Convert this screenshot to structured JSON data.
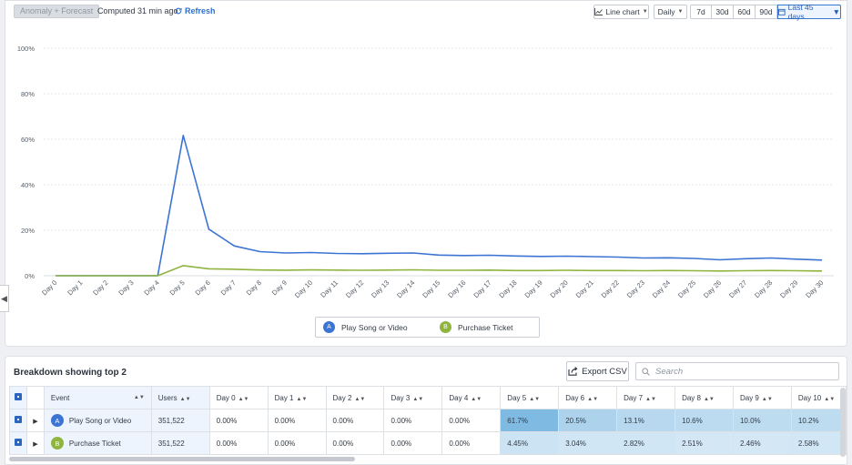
{
  "toolbar": {
    "anomaly_label": "Anomaly + Forecast",
    "computed_label": "Computed 31 min ago",
    "refresh_label": "Refresh",
    "chart_type_label": "Line chart",
    "interval_label": "Daily",
    "ranges": [
      "7d",
      "30d",
      "60d",
      "90d"
    ],
    "active_range_label": "Last 45 days"
  },
  "chart_data": {
    "type": "line",
    "x": [
      "Day 0",
      "Day 1",
      "Day 2",
      "Day 3",
      "Day 4",
      "Day 5",
      "Day 6",
      "Day 7",
      "Day 8",
      "Day 9",
      "Day 10",
      "Day 11",
      "Day 12",
      "Day 13",
      "Day 14",
      "Day 15",
      "Day 16",
      "Day 17",
      "Day 18",
      "Day 19",
      "Day 20",
      "Day 21",
      "Day 22",
      "Day 23",
      "Day 24",
      "Day 25",
      "Day 26",
      "Day 27",
      "Day 28",
      "Day 29",
      "Day 30"
    ],
    "y_ticks": [
      "0%",
      "20%",
      "40%",
      "60%",
      "80%",
      "100%"
    ],
    "ylim": [
      0,
      100
    ],
    "series": [
      {
        "name": "Play Song or Video",
        "badge": "A",
        "color": "#3c74d4",
        "values": [
          0,
          0,
          0,
          0,
          0,
          61.7,
          20.5,
          13.1,
          10.6,
          10.0,
          10.2,
          9.8,
          9.7,
          9.9,
          10.0,
          9.1,
          8.9,
          9.0,
          8.7,
          8.5,
          8.6,
          8.4,
          8.2,
          7.8,
          7.9,
          7.6,
          7.0,
          7.5,
          7.8,
          7.3,
          6.9
        ]
      },
      {
        "name": "Purchase Ticket",
        "badge": "B",
        "color": "#8fb440",
        "values": [
          0,
          0,
          0,
          0,
          0,
          4.45,
          3.04,
          2.82,
          2.51,
          2.46,
          2.58,
          2.5,
          2.4,
          2.5,
          2.6,
          2.4,
          2.4,
          2.5,
          2.3,
          2.3,
          2.4,
          2.3,
          2.3,
          2.2,
          2.3,
          2.2,
          2.1,
          2.2,
          2.3,
          2.2,
          2.1
        ]
      }
    ]
  },
  "legend": {
    "items": [
      {
        "badge": "A",
        "label": "Play Song or Video"
      },
      {
        "badge": "B",
        "label": "Purchase Ticket"
      }
    ]
  },
  "breakdown": {
    "title": "Breakdown showing top 2",
    "export_label": "Export CSV",
    "search_placeholder": "Search",
    "columns": [
      "Event",
      "Users",
      "Day 0",
      "Day 1",
      "Day 2",
      "Day 3",
      "Day 4",
      "Day 5",
      "Day 6",
      "Day 7",
      "Day 8",
      "Day 9",
      "Day 10"
    ],
    "rows": [
      {
        "badge": "A",
        "event": "Play Song or Video",
        "users": "351,522",
        "days": [
          "0.00%",
          "0.00%",
          "0.00%",
          "0.00%",
          "0.00%",
          "61.7%",
          "20.5%",
          "13.1%",
          "10.6%",
          "10.0%",
          "10.2%"
        ]
      },
      {
        "badge": "B",
        "event": "Purchase Ticket",
        "users": "351,522",
        "days": [
          "0.00%",
          "0.00%",
          "0.00%",
          "0.00%",
          "0.00%",
          "4.45%",
          "3.04%",
          "2.82%",
          "2.51%",
          "2.46%",
          "2.58%"
        ]
      }
    ]
  },
  "colors": {
    "accent": "#2a66c0",
    "series_a": "#3c74d4",
    "series_b": "#8fb440"
  }
}
